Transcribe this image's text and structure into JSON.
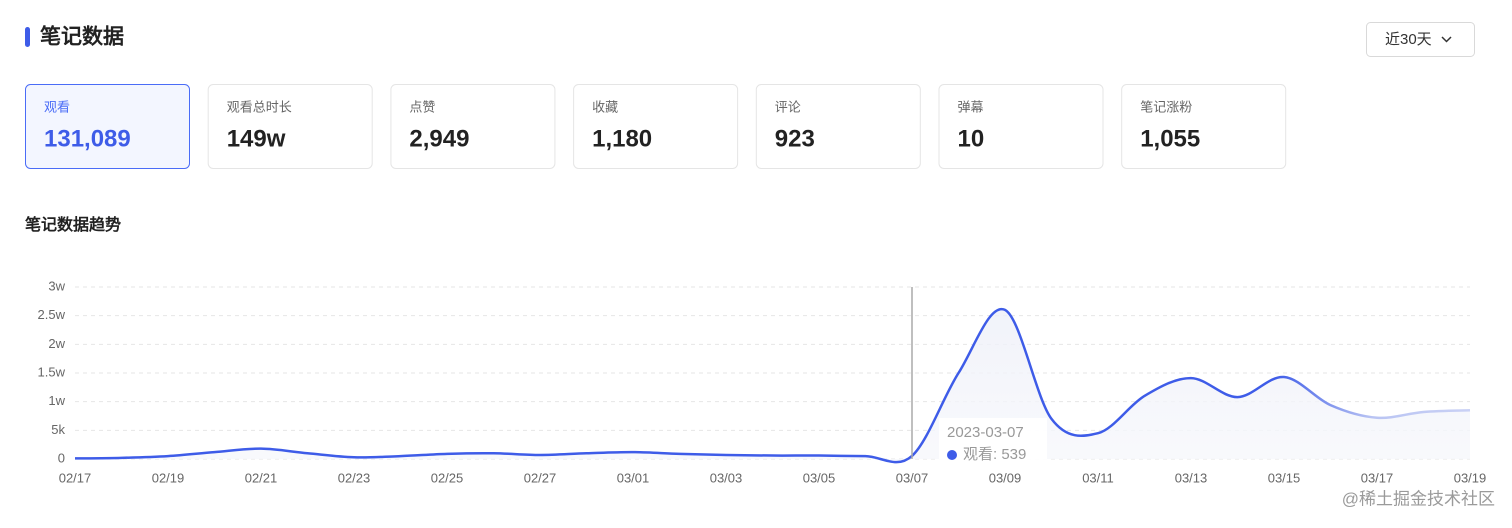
{
  "header": {
    "title": "笔记数据",
    "range": "近30天"
  },
  "cards": [
    {
      "label": "观看",
      "value": "131,089"
    },
    {
      "label": "观看总时长",
      "value": "149w"
    },
    {
      "label": "点赞",
      "value": "2,949"
    },
    {
      "label": "收藏",
      "value": "1,180"
    },
    {
      "label": "评论",
      "value": "923"
    },
    {
      "label": "弹幕",
      "value": "10"
    },
    {
      "label": "笔记涨粉",
      "value": "1,055"
    }
  ],
  "selected_card": 0,
  "section_title": "笔记数据趋势",
  "chart_data": {
    "type": "line",
    "categories": [
      "02/17",
      null,
      "02/19",
      null,
      "02/21",
      null,
      "02/23",
      null,
      "02/25",
      null,
      "02/27",
      null,
      "03/01",
      null,
      "03/03",
      null,
      "03/05",
      null,
      "03/07",
      null,
      "03/09",
      null,
      "03/11",
      null,
      "03/13",
      null,
      "03/15",
      null,
      "03/17",
      null,
      "03/19"
    ],
    "series": [
      {
        "name": "观看",
        "color": "#3e5ce8",
        "values": [
          100,
          200,
          500,
          1200,
          1800,
          1000,
          300,
          500,
          900,
          1000,
          700,
          1000,
          1200,
          900,
          700,
          600,
          600,
          500,
          539,
          15000,
          26000,
          7000,
          4500,
          11000,
          14100,
          10800,
          14300,
          9400,
          7200,
          8200,
          8500
        ]
      }
    ],
    "ylim": [
      0,
      30000
    ],
    "yticks": [
      0,
      {
        "value": 5000,
        "label": "5k"
      },
      {
        "value": 10000,
        "label": "1w"
      },
      {
        "value": 15000,
        "label": "1.5w"
      },
      {
        "value": 20000,
        "label": "2w"
      },
      {
        "value": 25000,
        "label": "2.5w"
      },
      {
        "value": 30000,
        "label": "3w"
      }
    ],
    "grid": true,
    "tooltip": {
      "index": 18,
      "date": "2023-03-07",
      "label": "观看: 539"
    }
  },
  "watermark": "@稀土掘金技术社区"
}
